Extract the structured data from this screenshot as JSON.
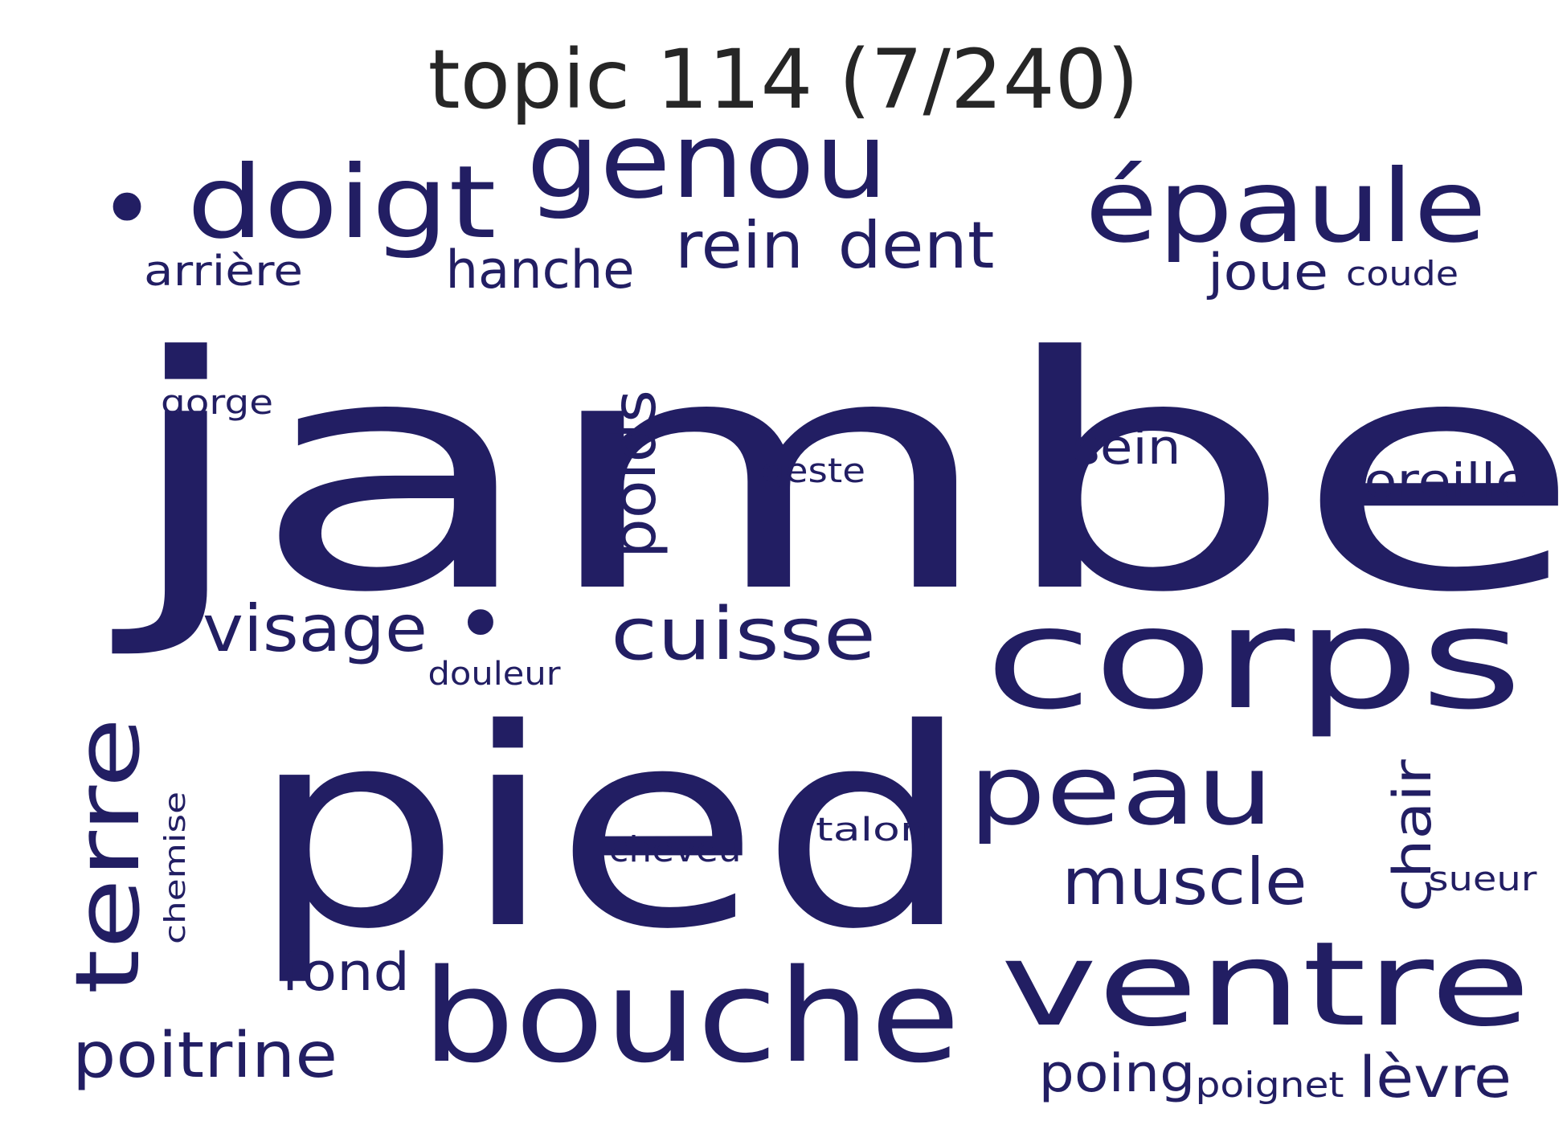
{
  "title": "topic 114 (7/240)",
  "colors": {
    "word": "#221e63",
    "title": "#262626",
    "background": "#ffffff"
  },
  "words": [
    {
      "key": "jambe",
      "text": "jambe"
    },
    {
      "key": "pied",
      "text": "pied"
    },
    {
      "key": "corps",
      "text": "corps"
    },
    {
      "key": "ventre",
      "text": "ventre"
    },
    {
      "key": "bouche",
      "text": "bouche"
    },
    {
      "key": "genou",
      "text": "genou"
    },
    {
      "key": "doigt",
      "text": "doigt"
    },
    {
      "key": "epaule",
      "text": "épaule"
    },
    {
      "key": "peau",
      "text": "peau"
    },
    {
      "key": "terre",
      "text": "terre"
    },
    {
      "key": "cuisse",
      "text": "cuisse"
    },
    {
      "key": "visage",
      "text": "visage"
    },
    {
      "key": "dent",
      "text": "dent"
    },
    {
      "key": "rein",
      "text": "rein"
    },
    {
      "key": "muscle",
      "text": "muscle"
    },
    {
      "key": "poitrine",
      "text": "poitrine"
    },
    {
      "key": "poids",
      "text": "poids"
    },
    {
      "key": "hanche",
      "text": "hanche"
    },
    {
      "key": "chair",
      "text": "chair"
    },
    {
      "key": "levre",
      "text": "lèvre"
    },
    {
      "key": "poing",
      "text": "poing"
    },
    {
      "key": "fond",
      "text": "fond"
    },
    {
      "key": "sein",
      "text": "sein"
    },
    {
      "key": "arriere",
      "text": "arrière"
    },
    {
      "key": "joue",
      "text": "joue"
    },
    {
      "key": "oreille",
      "text": "oreille"
    },
    {
      "key": "poignet",
      "text": "poignet"
    },
    {
      "key": "cheveu",
      "text": "cheveu"
    },
    {
      "key": "coude",
      "text": "coude"
    },
    {
      "key": "douleur",
      "text": "douleur"
    },
    {
      "key": "gorge",
      "text": "gorge"
    },
    {
      "key": "geste",
      "text": "geste"
    },
    {
      "key": "talon",
      "text": "talon"
    },
    {
      "key": "sueur",
      "text": "sueur"
    },
    {
      "key": "chemise",
      "text": "chemise"
    },
    {
      "key": "bullet-1",
      "text": "•"
    },
    {
      "key": "bullet-2",
      "text": "•"
    }
  ]
}
